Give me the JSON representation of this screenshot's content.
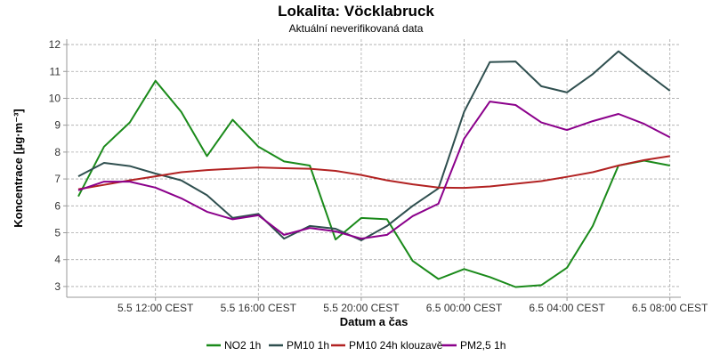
{
  "chart_data": {
    "type": "line",
    "title": "Lokalita: Vöcklabruck",
    "subtitle": "Aktuální neverifikovaná data",
    "xlabel": "Datum a čas",
    "ylabel": "Koncentrace [µg·m⁻³]",
    "ylim": [
      2.6,
      12.2
    ],
    "yticks": [
      "3",
      "4",
      "5",
      "6",
      "7",
      "8",
      "9",
      "10",
      "11",
      "12"
    ],
    "xticks": [
      "5.5 12:00 CEST",
      "5.5 16:00 CEST",
      "5.5 20:00 CEST",
      "6.5 00:00 CEST",
      "6.5 04:00 CEST",
      "6.5 08:00 CEST"
    ],
    "grid": true,
    "legend_position": "bottom",
    "x": [
      "5.5 09:00",
      "5.5 10:00",
      "5.5 11:00",
      "5.5 12:00",
      "5.5 13:00",
      "5.5 14:00",
      "5.5 15:00",
      "5.5 16:00",
      "5.5 17:00",
      "5.5 18:00",
      "5.5 19:00",
      "5.5 20:00",
      "5.5 21:00",
      "5.5 22:00",
      "5.5 23:00",
      "6.5 00:00",
      "6.5 01:00",
      "6.5 02:00",
      "6.5 03:00",
      "6.5 04:00",
      "6.5 05:00",
      "6.5 06:00",
      "6.5 07:00",
      "6.5 08:00"
    ],
    "series": [
      {
        "name": "NO2 1h",
        "color": "#1a8a1a",
        "values": [
          6.35,
          8.2,
          9.1,
          10.65,
          9.5,
          7.85,
          9.2,
          8.2,
          7.65,
          7.5,
          4.75,
          5.55,
          5.5,
          3.95,
          3.28,
          3.65,
          3.35,
          2.98,
          3.05,
          3.7,
          5.25,
          7.5,
          7.68,
          7.5
        ]
      },
      {
        "name": "PM10 1h",
        "color": "#2f4f4f",
        "values": [
          7.1,
          7.6,
          7.48,
          7.2,
          6.95,
          6.4,
          5.55,
          5.7,
          4.78,
          5.25,
          5.15,
          4.72,
          5.25,
          6.0,
          6.65,
          9.5,
          11.35,
          11.37,
          10.45,
          10.22,
          10.9,
          11.75,
          11.0,
          10.28
        ]
      },
      {
        "name": "PM10 24h klouzavě",
        "color": "#b22222",
        "values": [
          6.62,
          6.78,
          6.95,
          7.1,
          7.25,
          7.33,
          7.38,
          7.43,
          7.4,
          7.38,
          7.3,
          7.15,
          6.95,
          6.8,
          6.68,
          6.67,
          6.72,
          6.82,
          6.92,
          7.08,
          7.25,
          7.5,
          7.7,
          7.85
        ]
      },
      {
        "name": "PM2,5 1h",
        "color": "#8b008b",
        "values": [
          6.58,
          6.9,
          6.9,
          6.68,
          6.28,
          5.78,
          5.5,
          5.65,
          4.92,
          5.18,
          5.05,
          4.78,
          4.92,
          5.62,
          6.08,
          8.5,
          9.88,
          9.75,
          9.1,
          8.82,
          9.15,
          9.42,
          9.05,
          8.55
        ]
      }
    ]
  }
}
